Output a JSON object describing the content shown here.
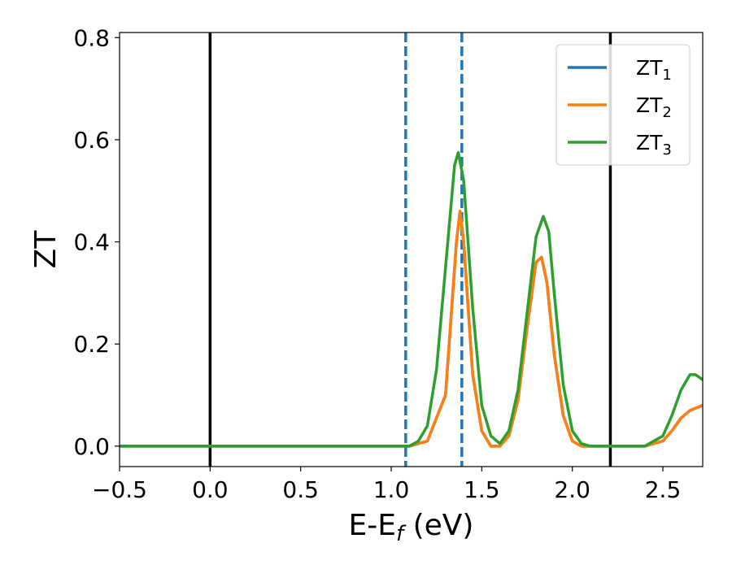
{
  "chart_data": {
    "type": "line",
    "xlabel": "E-E",
    "xlabel_sub": "f",
    "xlabel_unit": " (eV)",
    "ylabel": "ZT",
    "xlim": [
      -0.5,
      2.72
    ],
    "ylim": [
      -0.04,
      0.81
    ],
    "xticks": [
      -0.5,
      0.0,
      0.5,
      1.0,
      1.5,
      2.0,
      2.5
    ],
    "xtick_labels": [
      "−0.5",
      "0.0",
      "0.5",
      "1.0",
      "1.5",
      "2.0",
      "2.5"
    ],
    "yticks": [
      0.0,
      0.2,
      0.4,
      0.6,
      0.8
    ],
    "ytick_labels": [
      "0.0",
      "0.2",
      "0.4",
      "0.6",
      "0.8"
    ],
    "grid": false,
    "legend_position": "top-right",
    "vlines": [
      {
        "x": 0.0,
        "style": "solid",
        "color": "#000000"
      },
      {
        "x": 1.08,
        "style": "dashed",
        "color": "#1f77b4"
      },
      {
        "x": 1.39,
        "style": "dashed",
        "color": "#1f77b4"
      },
      {
        "x": 2.21,
        "style": "solid",
        "color": "#000000"
      }
    ],
    "series": [
      {
        "name": "ZT",
        "sub": "1",
        "color": "#1f77b4",
        "x": [
          -0.5,
          1.0,
          1.1,
          1.2,
          1.3,
          1.36,
          1.38,
          1.4,
          1.45,
          1.5,
          1.55,
          1.6,
          1.65,
          1.7,
          1.75,
          1.8,
          1.83,
          1.86,
          1.9,
          1.95,
          2.0,
          2.05,
          2.1,
          2.2,
          2.3,
          2.4,
          2.5,
          2.55,
          2.6,
          2.65,
          2.7,
          2.72
        ],
        "y": [
          0.0,
          0.0,
          0.0,
          0.01,
          0.1,
          0.4,
          0.46,
          0.4,
          0.14,
          0.03,
          0.0,
          0.0,
          0.02,
          0.09,
          0.23,
          0.36,
          0.37,
          0.32,
          0.18,
          0.06,
          0.01,
          0.0,
          0.0,
          0.0,
          0.0,
          0.0,
          0.01,
          0.03,
          0.055,
          0.07,
          0.077,
          0.08
        ]
      },
      {
        "name": "ZT",
        "sub": "2",
        "color": "#ff7f0e",
        "x": [
          -0.5,
          1.0,
          1.1,
          1.2,
          1.3,
          1.36,
          1.38,
          1.4,
          1.45,
          1.5,
          1.55,
          1.6,
          1.65,
          1.7,
          1.75,
          1.8,
          1.83,
          1.86,
          1.9,
          1.95,
          2.0,
          2.05,
          2.1,
          2.2,
          2.3,
          2.4,
          2.5,
          2.55,
          2.6,
          2.65,
          2.7,
          2.72
        ],
        "y": [
          0.0,
          0.0,
          0.0,
          0.01,
          0.1,
          0.4,
          0.46,
          0.4,
          0.14,
          0.03,
          0.0,
          0.0,
          0.02,
          0.09,
          0.23,
          0.36,
          0.37,
          0.32,
          0.18,
          0.06,
          0.01,
          0.0,
          0.0,
          0.0,
          0.0,
          0.0,
          0.01,
          0.03,
          0.055,
          0.07,
          0.077,
          0.08
        ]
      },
      {
        "name": "ZT",
        "sub": "3",
        "color": "#2ca02c",
        "x": [
          -0.5,
          1.0,
          1.1,
          1.15,
          1.2,
          1.25,
          1.3,
          1.35,
          1.37,
          1.4,
          1.45,
          1.5,
          1.55,
          1.6,
          1.65,
          1.7,
          1.75,
          1.8,
          1.84,
          1.87,
          1.9,
          1.95,
          2.0,
          2.05,
          2.1,
          2.2,
          2.3,
          2.4,
          2.5,
          2.55,
          2.6,
          2.65,
          2.68,
          2.72
        ],
        "y": [
          0.0,
          0.0,
          0.0,
          0.01,
          0.04,
          0.15,
          0.35,
          0.55,
          0.575,
          0.52,
          0.27,
          0.08,
          0.02,
          0.005,
          0.03,
          0.11,
          0.26,
          0.41,
          0.45,
          0.42,
          0.3,
          0.12,
          0.03,
          0.005,
          0.0,
          0.0,
          0.0,
          0.0,
          0.02,
          0.06,
          0.11,
          0.14,
          0.14,
          0.13
        ]
      }
    ]
  }
}
